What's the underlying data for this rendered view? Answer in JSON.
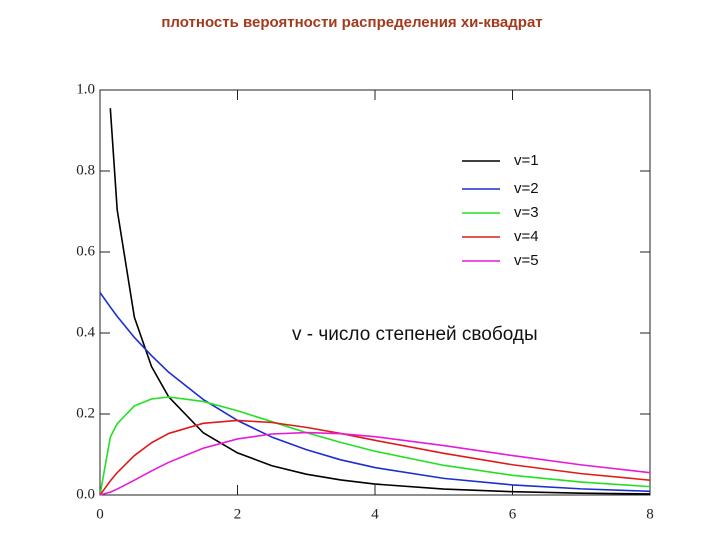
{
  "chart_data": {
    "type": "line",
    "title": "плотность вероятности распределения  хи-квадрат",
    "annotation": "v - число степеней свободы",
    "x": [
      0,
      0.15,
      0.25,
      0.5,
      0.75,
      1,
      1.5,
      2,
      2.5,
      3,
      3.5,
      4,
      5,
      6,
      7,
      8
    ],
    "series": [
      {
        "name": "v=1",
        "color": "#000000",
        "values": [
          null,
          0.955,
          0.704,
          0.439,
          0.317,
          0.242,
          0.154,
          0.104,
          0.0723,
          0.0514,
          0.0371,
          0.027,
          0.0146,
          0.0081,
          0.0046,
          0.0026
        ]
      },
      {
        "name": "v=2",
        "color": "#1a2fd0",
        "values": [
          0.5,
          0.464,
          0.441,
          0.389,
          0.344,
          0.303,
          0.236,
          0.184,
          0.143,
          0.112,
          0.0869,
          0.0677,
          0.041,
          0.0249,
          0.0151,
          0.0092
        ]
      },
      {
        "name": "v=3",
        "color": "#22e022",
        "values": [
          0,
          0.143,
          0.176,
          0.22,
          0.237,
          0.242,
          0.231,
          0.208,
          0.181,
          0.154,
          0.13,
          0.108,
          0.0732,
          0.0487,
          0.0319,
          0.0207
        ]
      },
      {
        "name": "v=4",
        "color": "#e01a1a",
        "values": [
          0,
          0.0348,
          0.0552,
          0.0974,
          0.129,
          0.152,
          0.177,
          0.184,
          0.179,
          0.167,
          0.152,
          0.135,
          0.103,
          0.0747,
          0.0528,
          0.0366
        ]
      },
      {
        "name": "v=5",
        "color": "#e61ad8",
        "values": [
          0,
          0.00717,
          0.0147,
          0.0366,
          0.0594,
          0.0807,
          0.1154,
          0.1384,
          0.1506,
          0.1542,
          0.1514,
          0.144,
          0.122,
          0.0973,
          0.0744,
          0.0551
        ]
      }
    ],
    "xlim": [
      0,
      8
    ],
    "xticks": [
      0,
      2,
      4,
      6,
      8
    ],
    "ylim": [
      0,
      1
    ],
    "yticks": [
      {
        "value": 0,
        "label": "0.0"
      },
      {
        "value": 0.2,
        "label": "0.2"
      },
      {
        "value": 0.4,
        "label": "0.4"
      },
      {
        "value": 0.6,
        "label": "0.6"
      },
      {
        "value": 0.8,
        "label": "0.8"
      },
      {
        "value": 1,
        "label": "1.0"
      }
    ],
    "legend": "upper right"
  }
}
